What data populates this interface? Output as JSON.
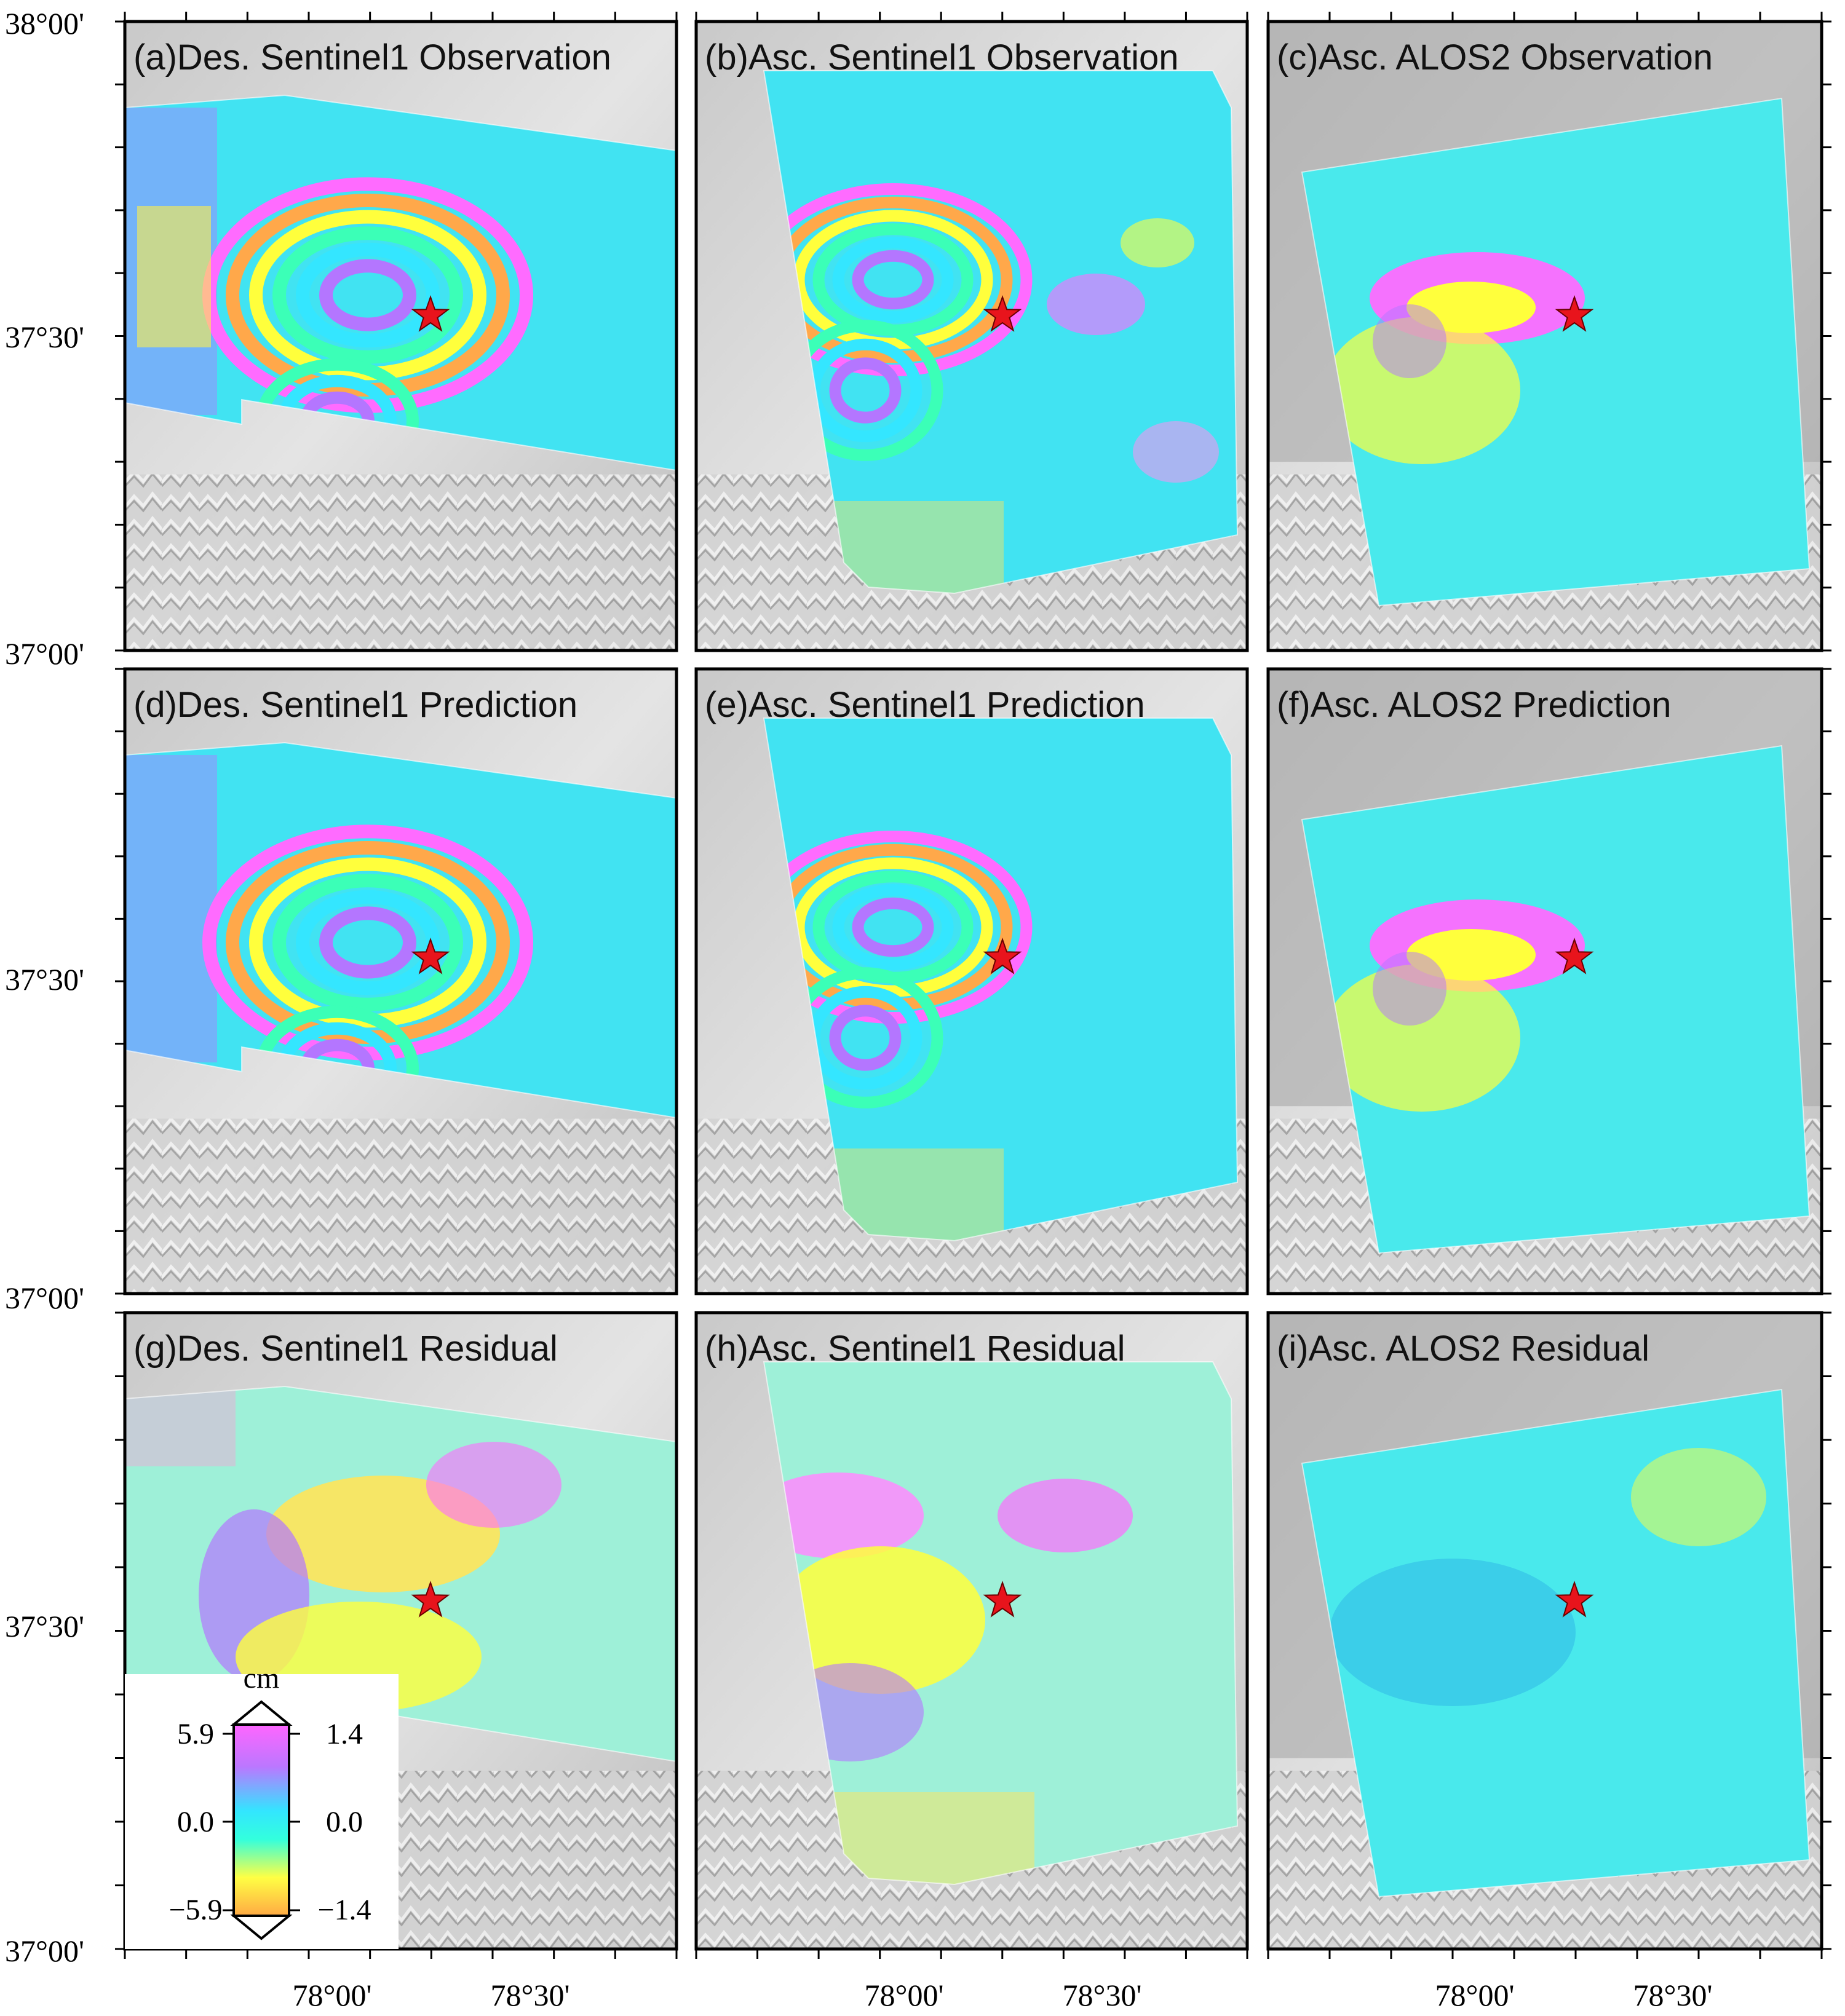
{
  "figure": {
    "panels": [
      {
        "title": "(a)Des. Sentinel1 Observation",
        "shape": "des",
        "pattern": "obs"
      },
      {
        "title": "(b)Asc. Sentinel1 Observation",
        "shape": "asc_s1",
        "pattern": "obs_asc"
      },
      {
        "title": "(c)Asc. ALOS2 Observation",
        "shape": "alos",
        "pattern": "alos"
      },
      {
        "title": "(d)Des. Sentinel1 Prediction",
        "shape": "des",
        "pattern": "pred"
      },
      {
        "title": "(e)Asc. Sentinel1 Prediction",
        "shape": "asc_s1",
        "pattern": "pred_asc"
      },
      {
        "title": "(f)Asc. ALOS2 Prediction",
        "shape": "alos",
        "pattern": "alos"
      },
      {
        "title": "(g)Des. Sentinel1 Residual",
        "shape": "des",
        "pattern": "resid"
      },
      {
        "title": "(h)Asc. Sentinel1 Residual",
        "shape": "asc_s1",
        "pattern": "resid_asc"
      },
      {
        "title": "(i)Asc. ALOS2 Residual",
        "shape": "alos",
        "pattern": "resid_alos"
      }
    ],
    "y_ticks": [
      "38°00'",
      "37°30'",
      "37°00'"
    ],
    "x_ticks": [
      "78°00'",
      "78°30'"
    ],
    "epicenter": {
      "lon": "78°12'",
      "lat": "37°32'",
      "color": "#e8141c",
      "symbol": "star"
    },
    "colorbar": {
      "unit": "cm",
      "left_labels": [
        "5.9",
        "0.0",
        "−5.9"
      ],
      "right_labels": [
        "1.4",
        "0.0",
        "−1.4"
      ],
      "colors": [
        "#ff66ff",
        "#bb77ff",
        "#33e5ff",
        "#33ffdd",
        "#ffff44",
        "#ffaa44"
      ]
    }
  }
}
